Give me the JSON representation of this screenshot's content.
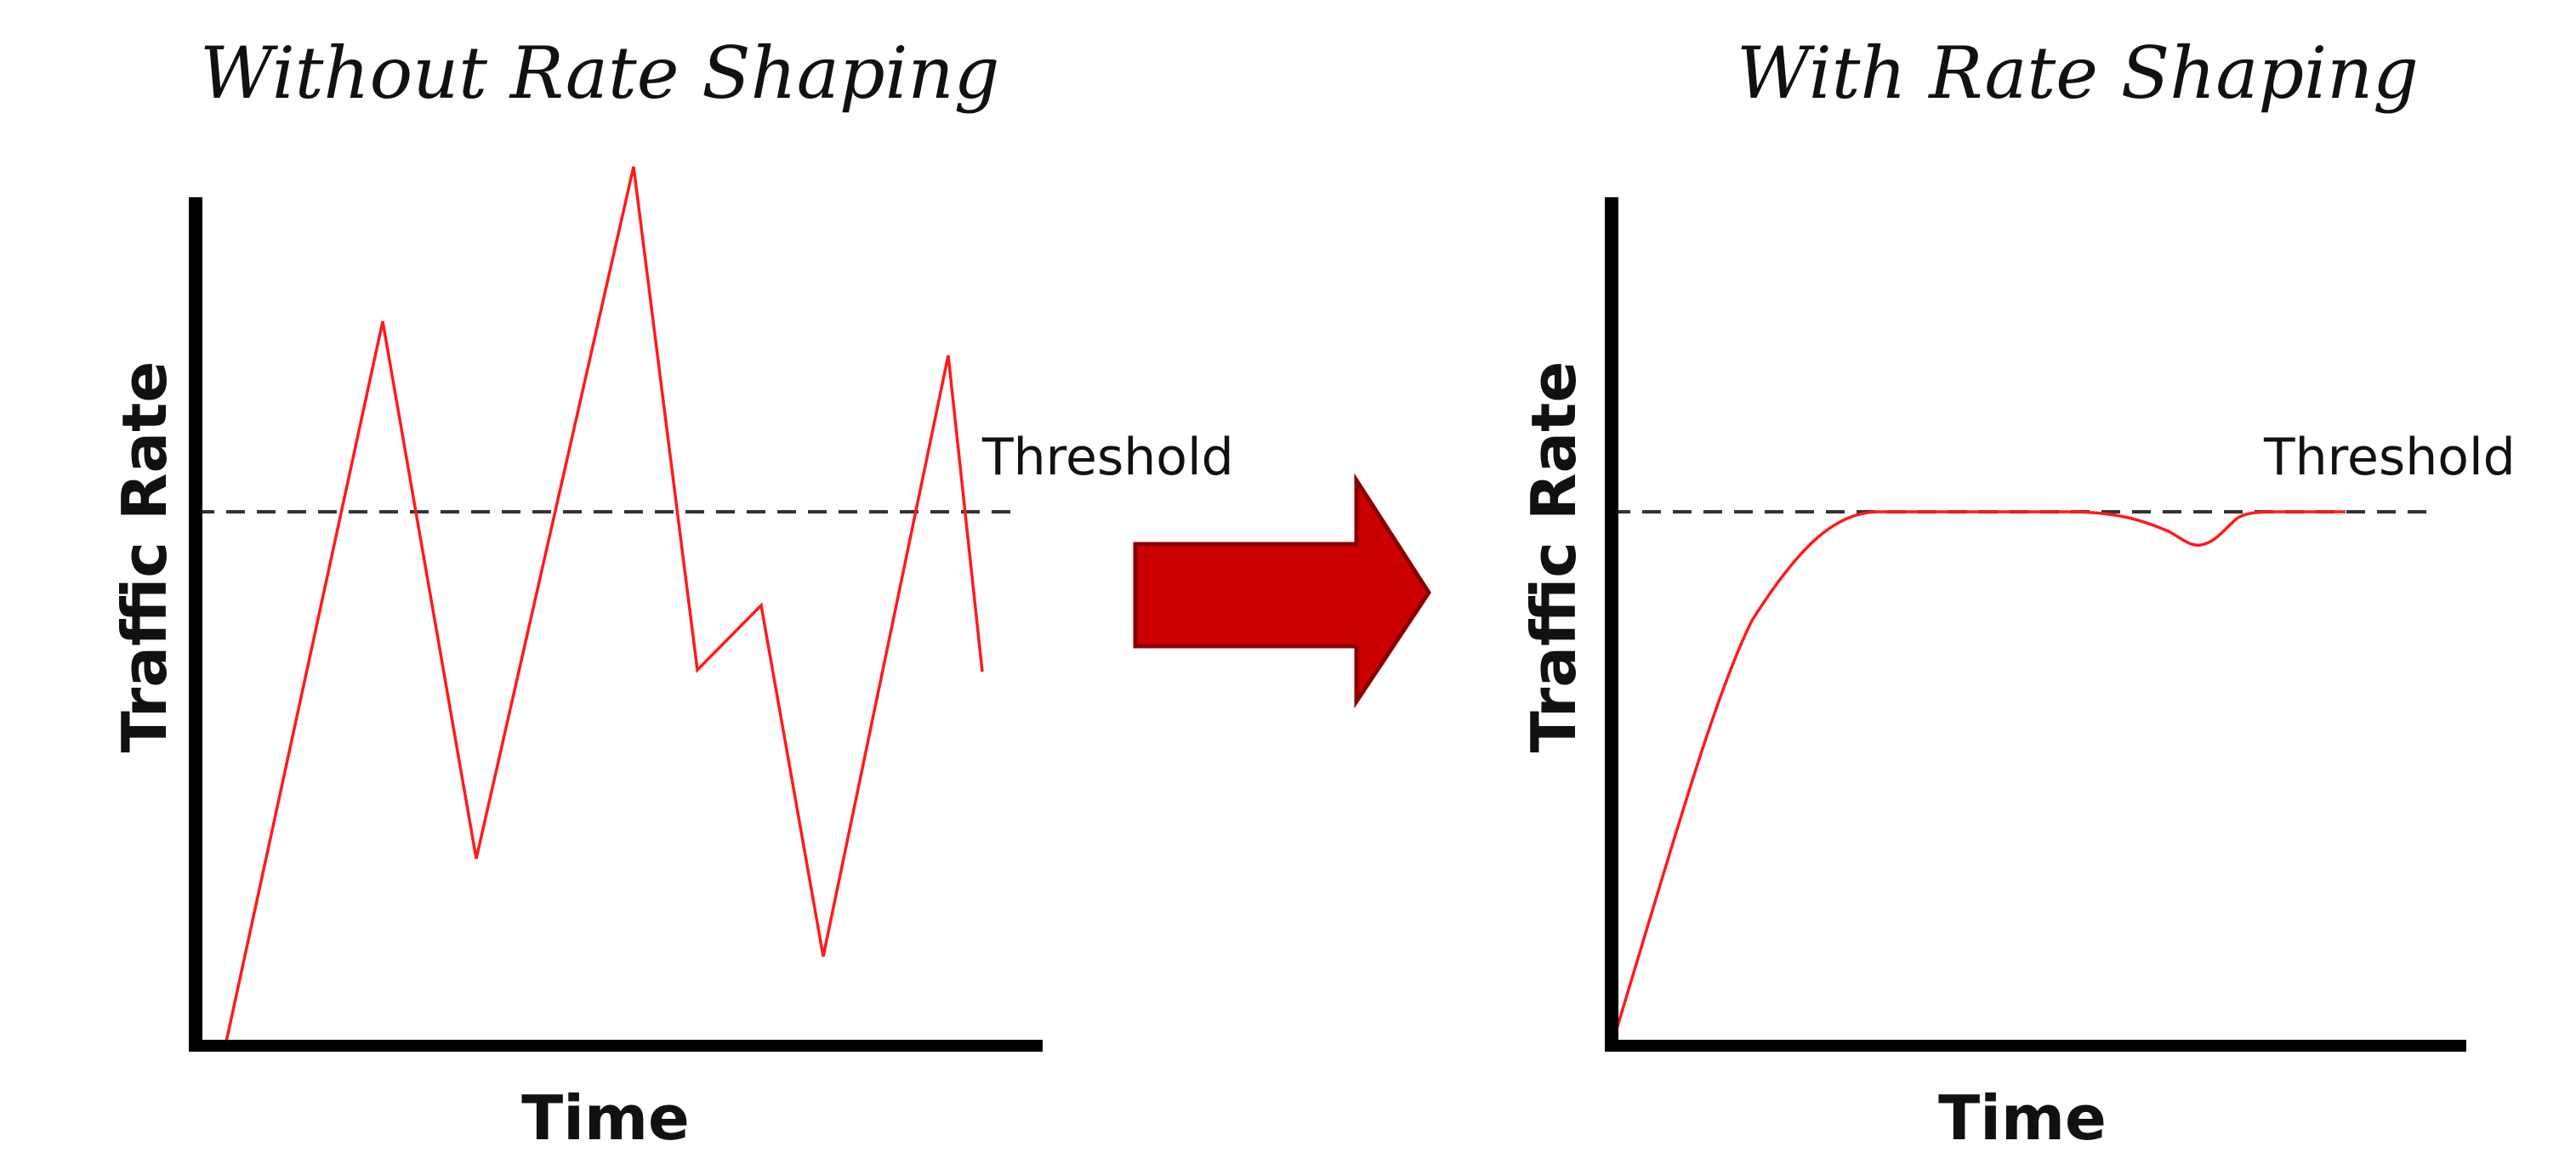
{
  "panels": {
    "without": {
      "title": "Without Rate Shaping",
      "ylabel": "Traffic Rate",
      "xlabel": "Time",
      "threshold_label": "Threshold"
    },
    "with": {
      "title": "With Rate Shaping",
      "ylabel": "Traffic Rate",
      "xlabel": "Time",
      "threshold_label": "Threshold"
    }
  },
  "colors": {
    "traffic_line": "#ff1a1a",
    "arrow_fill": "#cc0000",
    "arrow_stroke": "#8a0000",
    "axis": "#000000",
    "threshold_line": "#333333"
  },
  "icons": {
    "transition": "right-arrow-icon"
  }
}
